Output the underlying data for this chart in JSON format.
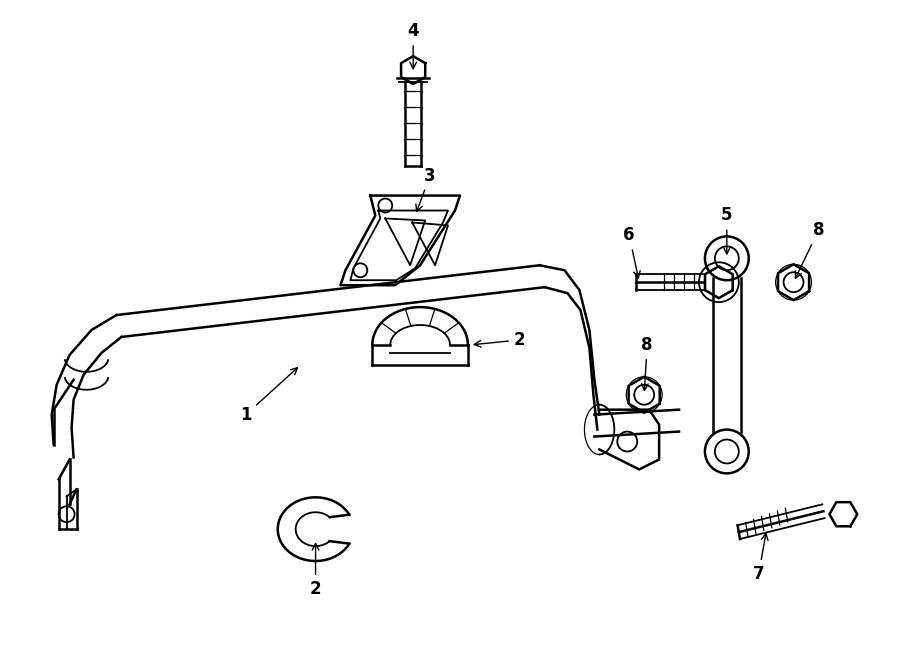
{
  "bg_color": "#ffffff",
  "line_color": "#000000",
  "figsize": [
    9.0,
    6.61
  ],
  "dpi": 100,
  "lw_thick": 1.8,
  "lw_med": 1.3,
  "lw_thin": 0.9,
  "font_size": 12
}
